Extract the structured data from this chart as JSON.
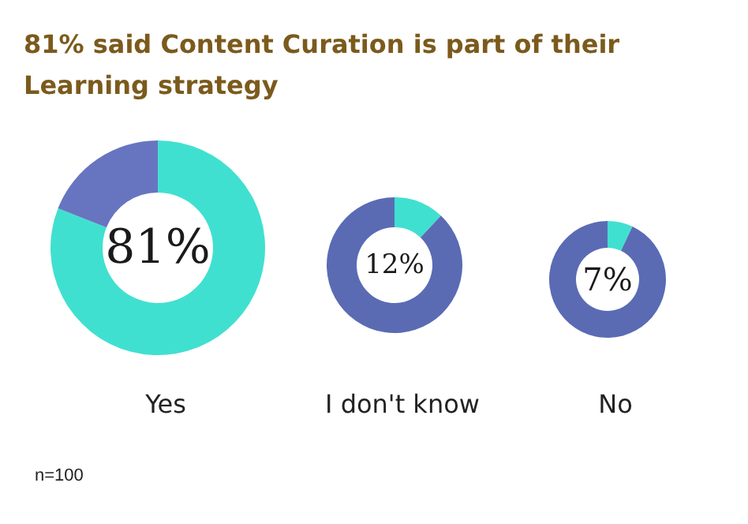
{
  "chart_data": [
    {
      "type": "donut",
      "title": "81% said Content Curation is part of their Learning strategy",
      "annotations": [
        "n=100"
      ],
      "xlabel": "Yes",
      "categories": [
        null,
        null
      ],
      "values": [
        81,
        19
      ],
      "colors": [
        "#40e0d0",
        "#6775c0"
      ],
      "value_labels": [
        "81%",
        null
      ]
    },
    {
      "type": "donut",
      "xlabel": "I don't know",
      "categories": [
        null,
        null
      ],
      "values": [
        12,
        88
      ],
      "colors": [
        "#40e0d0",
        "#5a6bb4"
      ],
      "value_labels": [
        "12%",
        null
      ]
    },
    {
      "type": "donut",
      "xlabel": "No",
      "categories": [
        null,
        null
      ],
      "values": [
        7,
        93
      ],
      "colors": [
        "#40e0d0",
        "#5a6bb4"
      ],
      "value_labels": [
        "7%",
        null
      ]
    }
  ]
}
